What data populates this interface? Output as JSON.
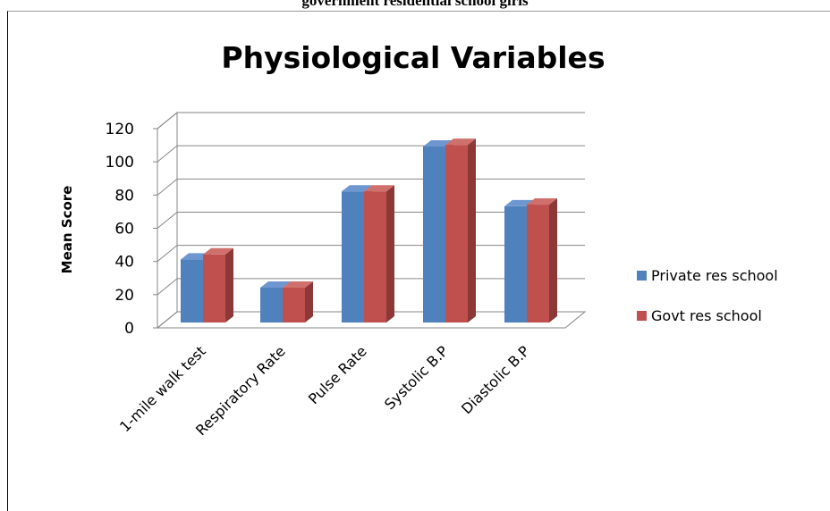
{
  "document": {
    "header_text": "government residential school girls"
  },
  "chart_data": {
    "type": "bar",
    "title": "Physiological Variables",
    "xlabel": "",
    "ylabel": "Mean Score",
    "categories": [
      "1-mile walk test",
      "Respiratory Rate",
      "Pulse Rate",
      "Systolic B.P",
      "Diastolic B.P"
    ],
    "series": [
      {
        "name": "Private res school",
        "values": [
          38,
          21,
          79,
          106,
          70
        ],
        "color": "#4f81bd",
        "side_color": "#385d8a",
        "top_color": "#6f97cf"
      },
      {
        "name": "Govt res school",
        "values": [
          41,
          21,
          79,
          107,
          71
        ],
        "color": "#c0504d",
        "side_color": "#8c3836",
        "top_color": "#d0706d"
      }
    ],
    "ylim": [
      0,
      120
    ],
    "yticks": [
      "0",
      "20",
      "40",
      "60",
      "80",
      "100",
      "120"
    ],
    "grid": true,
    "legend": "right",
    "style": "3d-clustered-column"
  }
}
